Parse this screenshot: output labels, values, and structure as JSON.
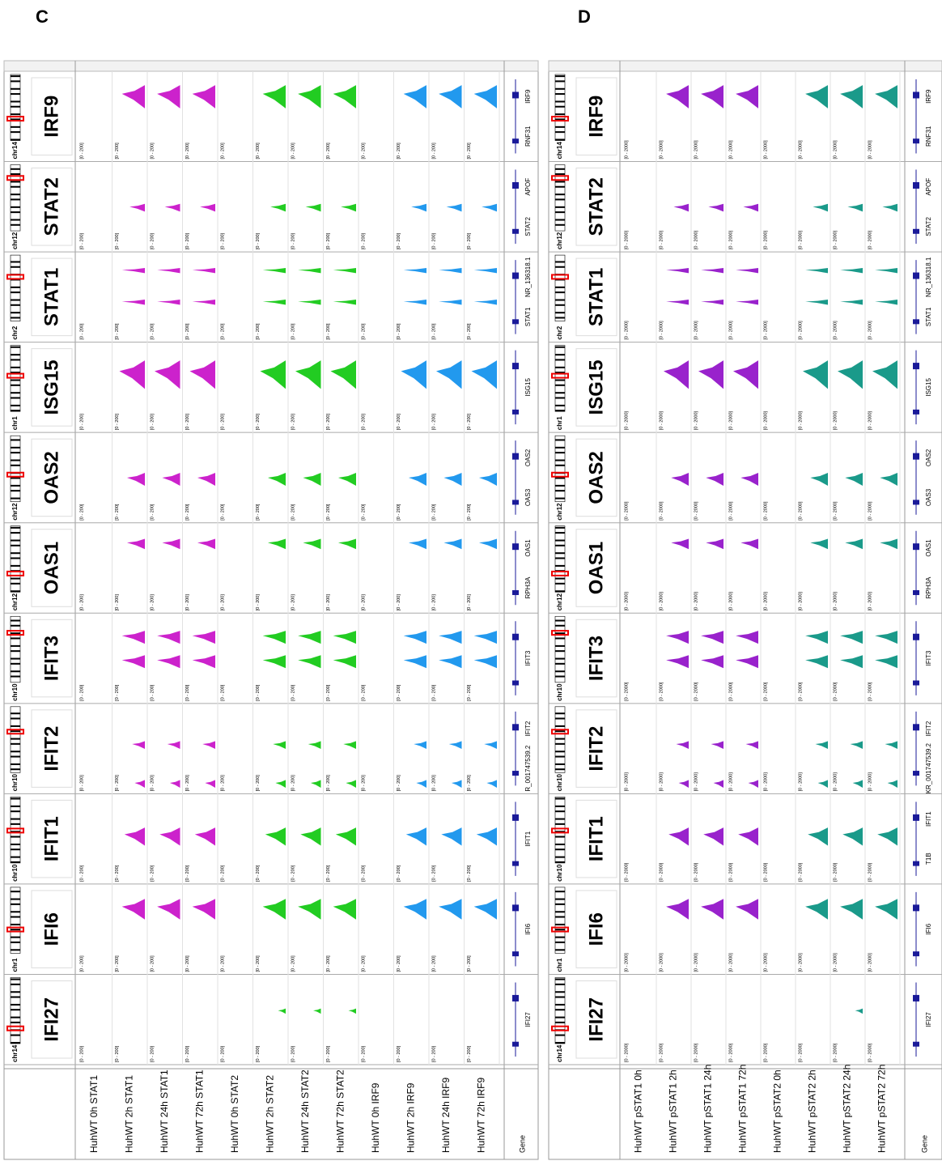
{
  "panels": [
    {
      "label": "C",
      "range_label": "[0 - 200]",
      "gene_track": "Gene",
      "tracks": [
        {
          "name": "HuhWT 0h STAT1",
          "color": "#cc22cc"
        },
        {
          "name": "HuhWT 2h STAT1",
          "color": "#cc22cc"
        },
        {
          "name": "HuhWT 24h STAT1",
          "color": "#cc22cc"
        },
        {
          "name": "HuhWT 72h STAT1",
          "color": "#cc22cc"
        },
        {
          "name": "HuhWT 0h STAT2",
          "color": "#22cc22"
        },
        {
          "name": "HuhWT 2h STAT2",
          "color": "#22cc22"
        },
        {
          "name": "HuhWT 24h STAT2",
          "color": "#22cc22"
        },
        {
          "name": "HuhWT 72h STAT2",
          "color": "#22cc22"
        },
        {
          "name": "HuhWT 0h IRF9",
          "color": "#2299ee"
        },
        {
          "name": "HuhWT 2h IRF9",
          "color": "#2299ee"
        },
        {
          "name": "HuhWT 24h IRF9",
          "color": "#2299ee"
        },
        {
          "name": "HuhWT 72h IRF9",
          "color": "#2299ee"
        }
      ],
      "loci": [
        {
          "chr": "chr14",
          "gene": "IFI27",
          "annotations": [
            "IFI27"
          ]
        },
        {
          "chr": "chr1",
          "gene": "IFI6",
          "annotations": [
            "IFI6"
          ]
        },
        {
          "chr": "chr10",
          "gene": "IFIT1",
          "annotations": [
            "IFIT1"
          ]
        },
        {
          "chr": "chr10",
          "gene": "IFIT2",
          "annotations": [
            "R_001747539.2",
            "IFIT2"
          ]
        },
        {
          "chr": "chr10",
          "gene": "IFIT3",
          "annotations": [
            "IFIT3"
          ]
        },
        {
          "chr": "chr12",
          "gene": "OAS1",
          "annotations": [
            "RPH3A",
            "OAS1"
          ]
        },
        {
          "chr": "chr12",
          "gene": "OAS2",
          "annotations": [
            "OAS3",
            "OAS2"
          ]
        },
        {
          "chr": "chr1",
          "gene": "ISG15",
          "annotations": [
            "ISG15"
          ]
        },
        {
          "chr": "chr2",
          "gene": "STAT1",
          "annotations": [
            "STAT1",
            "NR_136318.1"
          ]
        },
        {
          "chr": "chr12",
          "gene": "STAT2",
          "annotations": [
            "STAT2",
            "APOF"
          ]
        },
        {
          "chr": "chr14",
          "gene": "IRF9",
          "annotations": [
            "RNF31",
            "IRF9"
          ]
        }
      ]
    },
    {
      "label": "D",
      "range_label": "[0 - 2000]",
      "gene_track": "Gene",
      "tracks": [
        {
          "name": "HuhWT pSTAT1 0h",
          "color": "#9922cc"
        },
        {
          "name": "HuhWT pSTAT1 2h",
          "color": "#9922cc"
        },
        {
          "name": "HuhWT pSTAT1 24h",
          "color": "#9922cc"
        },
        {
          "name": "HuhWT pSTAT1 72h",
          "color": "#9922cc"
        },
        {
          "name": "HuhWT pSTAT2 0h",
          "color": "#1a9a8a"
        },
        {
          "name": "HuhWT pSTAT2 2h",
          "color": "#1a9a8a"
        },
        {
          "name": "HuhWT pSTAT2 24h",
          "color": "#1a9a8a"
        },
        {
          "name": "HuhWT pSTAT2 72h",
          "color": "#1a9a8a"
        }
      ],
      "loci": [
        {
          "chr": "chr14",
          "gene": "IFI27",
          "annotations": [
            "IFI27"
          ]
        },
        {
          "chr": "chr1",
          "gene": "IFI6",
          "annotations": [
            "IFI6"
          ]
        },
        {
          "chr": "chr10",
          "gene": "IFIT1",
          "annotations": [
            "T1B",
            "IFIT1"
          ]
        },
        {
          "chr": "chr10",
          "gene": "IFIT2",
          "annotations": [
            "KR_001747539.2",
            "IFIT2"
          ]
        },
        {
          "chr": "chr10",
          "gene": "IFIT3",
          "annotations": [
            "IFIT3"
          ]
        },
        {
          "chr": "chr12",
          "gene": "OAS1",
          "annotations": [
            "RPH3A",
            "OAS1"
          ]
        },
        {
          "chr": "chr12",
          "gene": "OAS2",
          "annotations": [
            "OAS3",
            "OAS2"
          ]
        },
        {
          "chr": "chr1",
          "gene": "ISG15",
          "annotations": [
            "ISG15"
          ]
        },
        {
          "chr": "chr2",
          "gene": "STAT1",
          "annotations": [
            "STAT1",
            "NR_136318.1"
          ]
        },
        {
          "chr": "chr12",
          "gene": "STAT2",
          "annotations": [
            "STAT2",
            "APOF"
          ]
        },
        {
          "chr": "chr14",
          "gene": "IRF9",
          "annotations": [
            "RNF31",
            "IRF9"
          ]
        }
      ]
    }
  ]
}
